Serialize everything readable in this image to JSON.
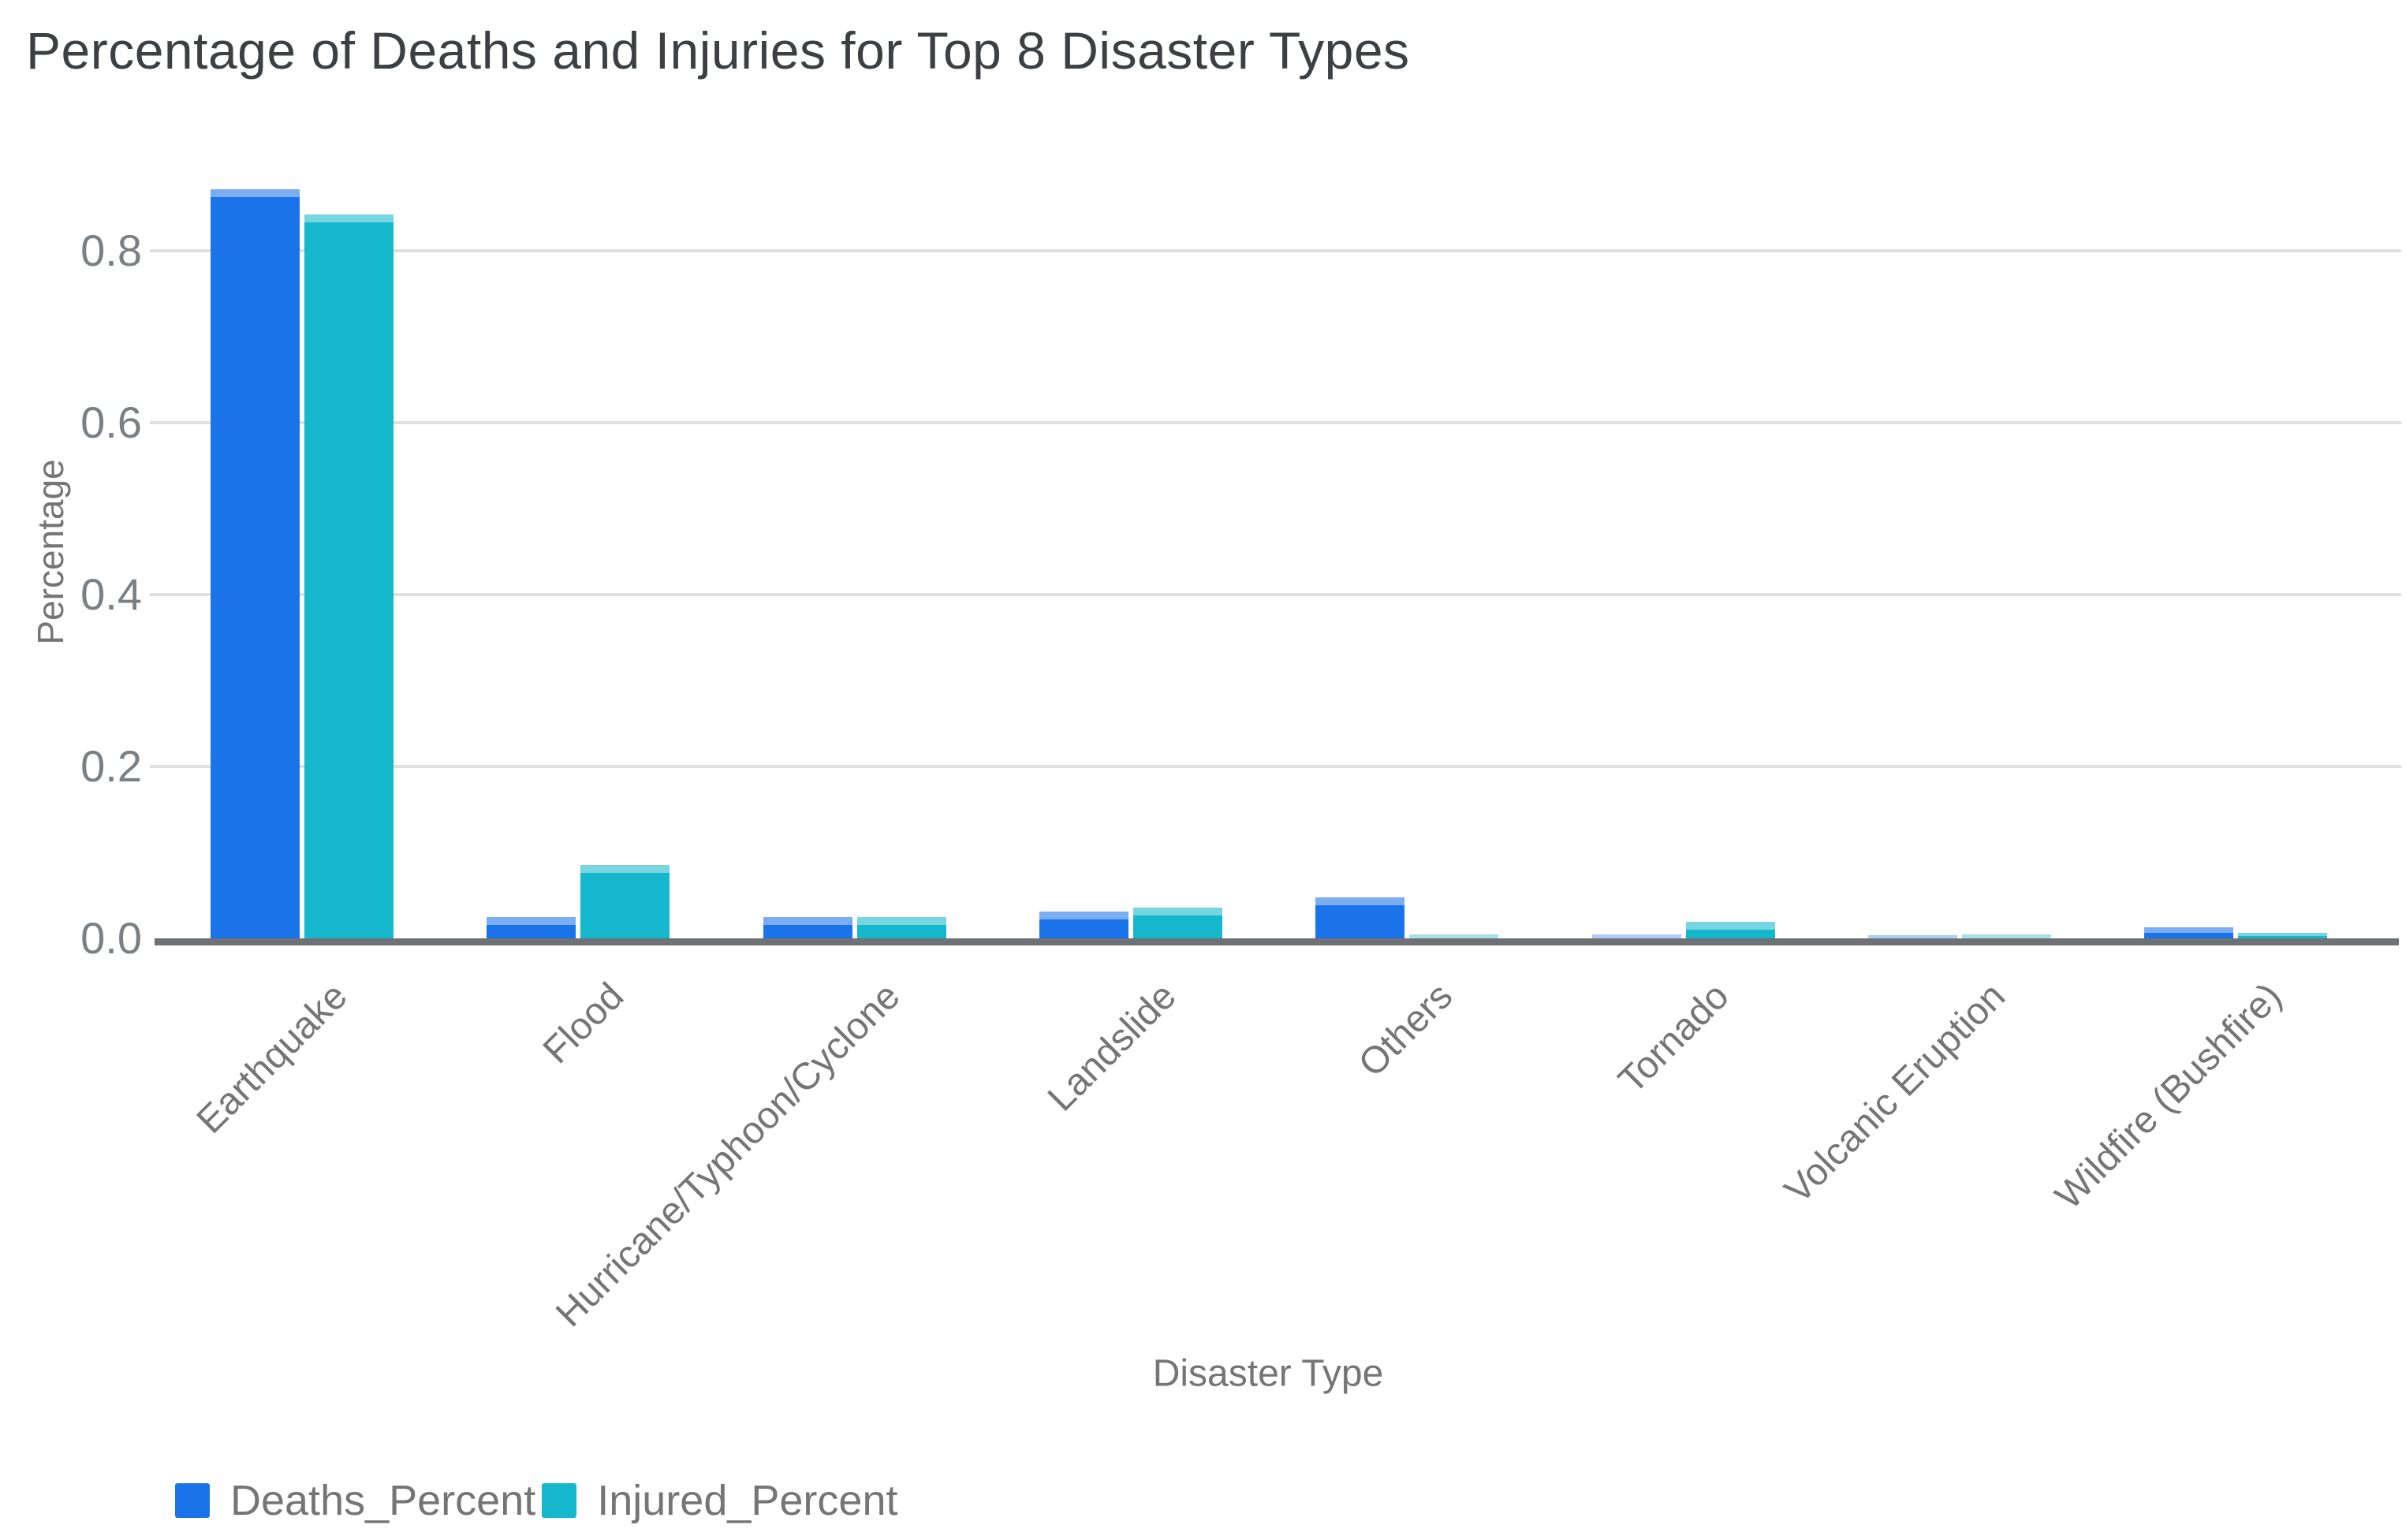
{
  "chart_data": {
    "type": "bar",
    "title": "Percentage of Deaths and Injuries for Top 8 Disaster Types",
    "xlabel": "Disaster Type",
    "ylabel": "Percentage",
    "categories": [
      "Earthquake",
      "Flood",
      "Hurricane/Typhoon/Cyclone",
      "Landslide",
      "Others",
      "Tornado",
      "Volcanic Eruption",
      "Wildfire (Bushfire)"
    ],
    "series": [
      {
        "name": "Deaths_Percent",
        "color": "#1a73e8",
        "color_light": "#aecbfa",
        "values": [
          0.872,
          0.025,
          0.025,
          0.031,
          0.048,
          0.005,
          0.004,
          0.013
        ]
      },
      {
        "name": "Injured_Percent",
        "color": "#14b7cc",
        "color_light": "#a8dee8",
        "values": [
          0.842,
          0.085,
          0.025,
          0.036,
          0.005,
          0.019,
          0.005,
          0.006
        ]
      }
    ],
    "y_ticks": [
      0.0,
      0.2,
      0.4,
      0.6,
      0.8
    ],
    "ylim": [
      0,
      0.9
    ],
    "grid": true,
    "legend_position": "bottom-left",
    "colors": {
      "gridline": "#e0e0e0",
      "axis_line": "#6e7276",
      "tick_text": "#7a7f84",
      "label_text": "#757575",
      "title_text": "#3c4043"
    }
  }
}
